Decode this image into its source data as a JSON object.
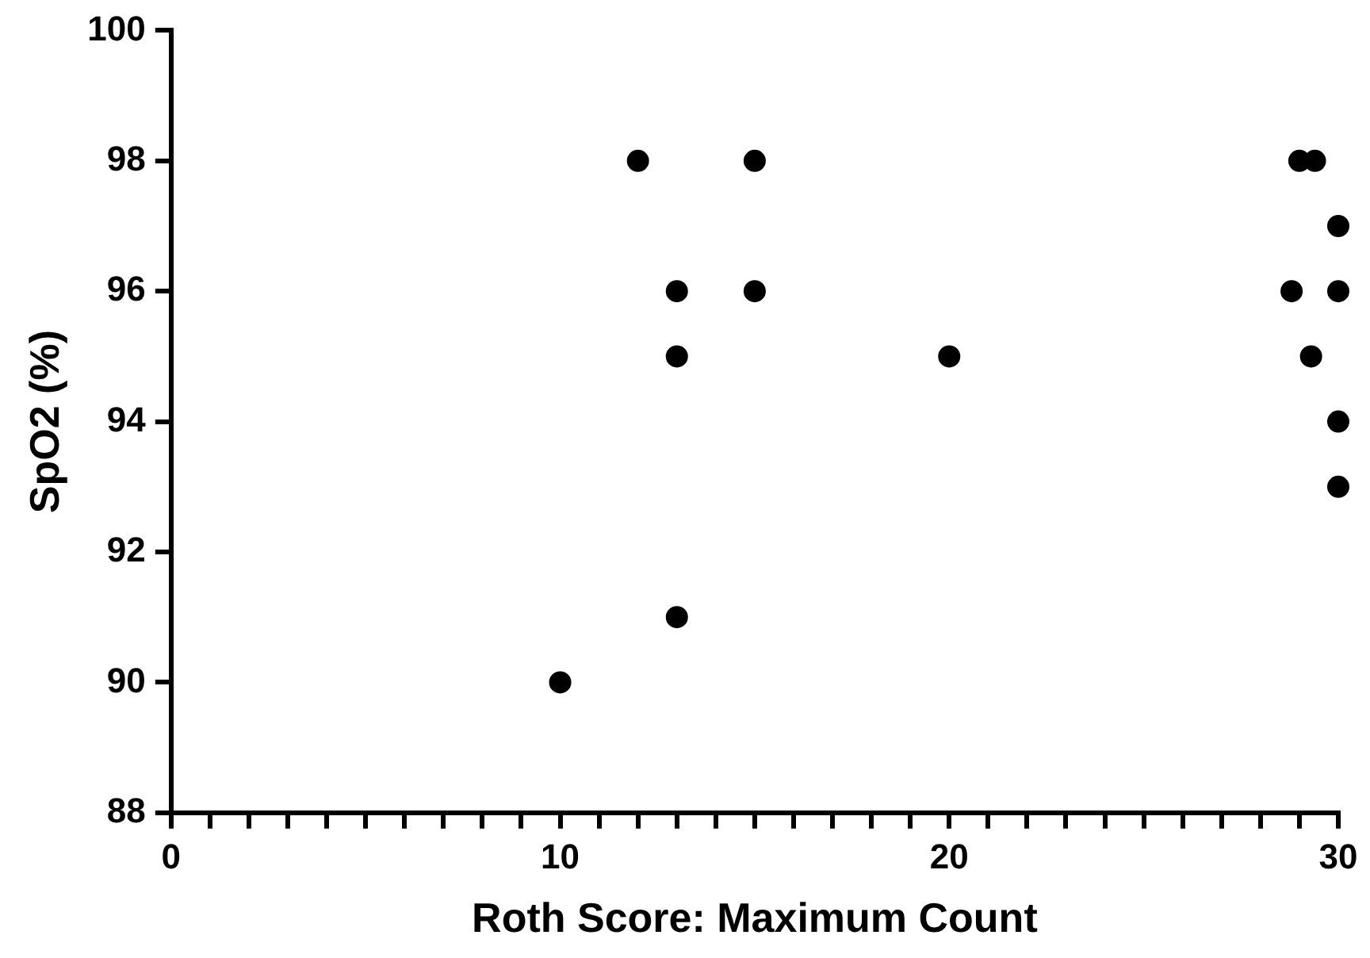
{
  "chart_data": {
    "type": "scatter",
    "xlabel": "Roth Score: Maximum Count",
    "ylabel": "SpO2 (%)",
    "x": [
      10,
      12,
      13,
      13,
      13,
      15,
      15,
      20,
      28.8,
      29,
      29.4,
      29.3,
      30,
      30,
      30,
      30
    ],
    "values": [
      90,
      98,
      96,
      95,
      91,
      98,
      96,
      95,
      96,
      98,
      98,
      95,
      97,
      96,
      94,
      93
    ],
    "color": "#000000",
    "marker": "circle",
    "xlim": [
      0,
      30
    ],
    "xticks": [
      0,
      {
        "value": 1,
        "label": null
      },
      {
        "value": 2,
        "label": null
      },
      {
        "value": 3,
        "label": null
      },
      {
        "value": 4,
        "label": null
      },
      {
        "value": 5,
        "label": null
      },
      {
        "value": 6,
        "label": null
      },
      {
        "value": 7,
        "label": null
      },
      {
        "value": 8,
        "label": null
      },
      {
        "value": 9,
        "label": null
      },
      10,
      {
        "value": 11,
        "label": null
      },
      {
        "value": 12,
        "label": null
      },
      {
        "value": 13,
        "label": null
      },
      {
        "value": 14,
        "label": null
      },
      {
        "value": 15,
        "label": null
      },
      {
        "value": 16,
        "label": null
      },
      {
        "value": 17,
        "label": null
      },
      {
        "value": 18,
        "label": null
      },
      {
        "value": 19,
        "label": null
      },
      20,
      {
        "value": 21,
        "label": null
      },
      {
        "value": 22,
        "label": null
      },
      {
        "value": 23,
        "label": null
      },
      {
        "value": 24,
        "label": null
      },
      {
        "value": 25,
        "label": null
      },
      {
        "value": 26,
        "label": null
      },
      {
        "value": 27,
        "label": null
      },
      {
        "value": 28,
        "label": null
      },
      {
        "value": 29,
        "label": null
      },
      30
    ],
    "ylim": [
      88,
      100
    ],
    "yticks": [
      88,
      90,
      92,
      94,
      96,
      98,
      100
    ],
    "grid": false,
    "legend": false
  }
}
